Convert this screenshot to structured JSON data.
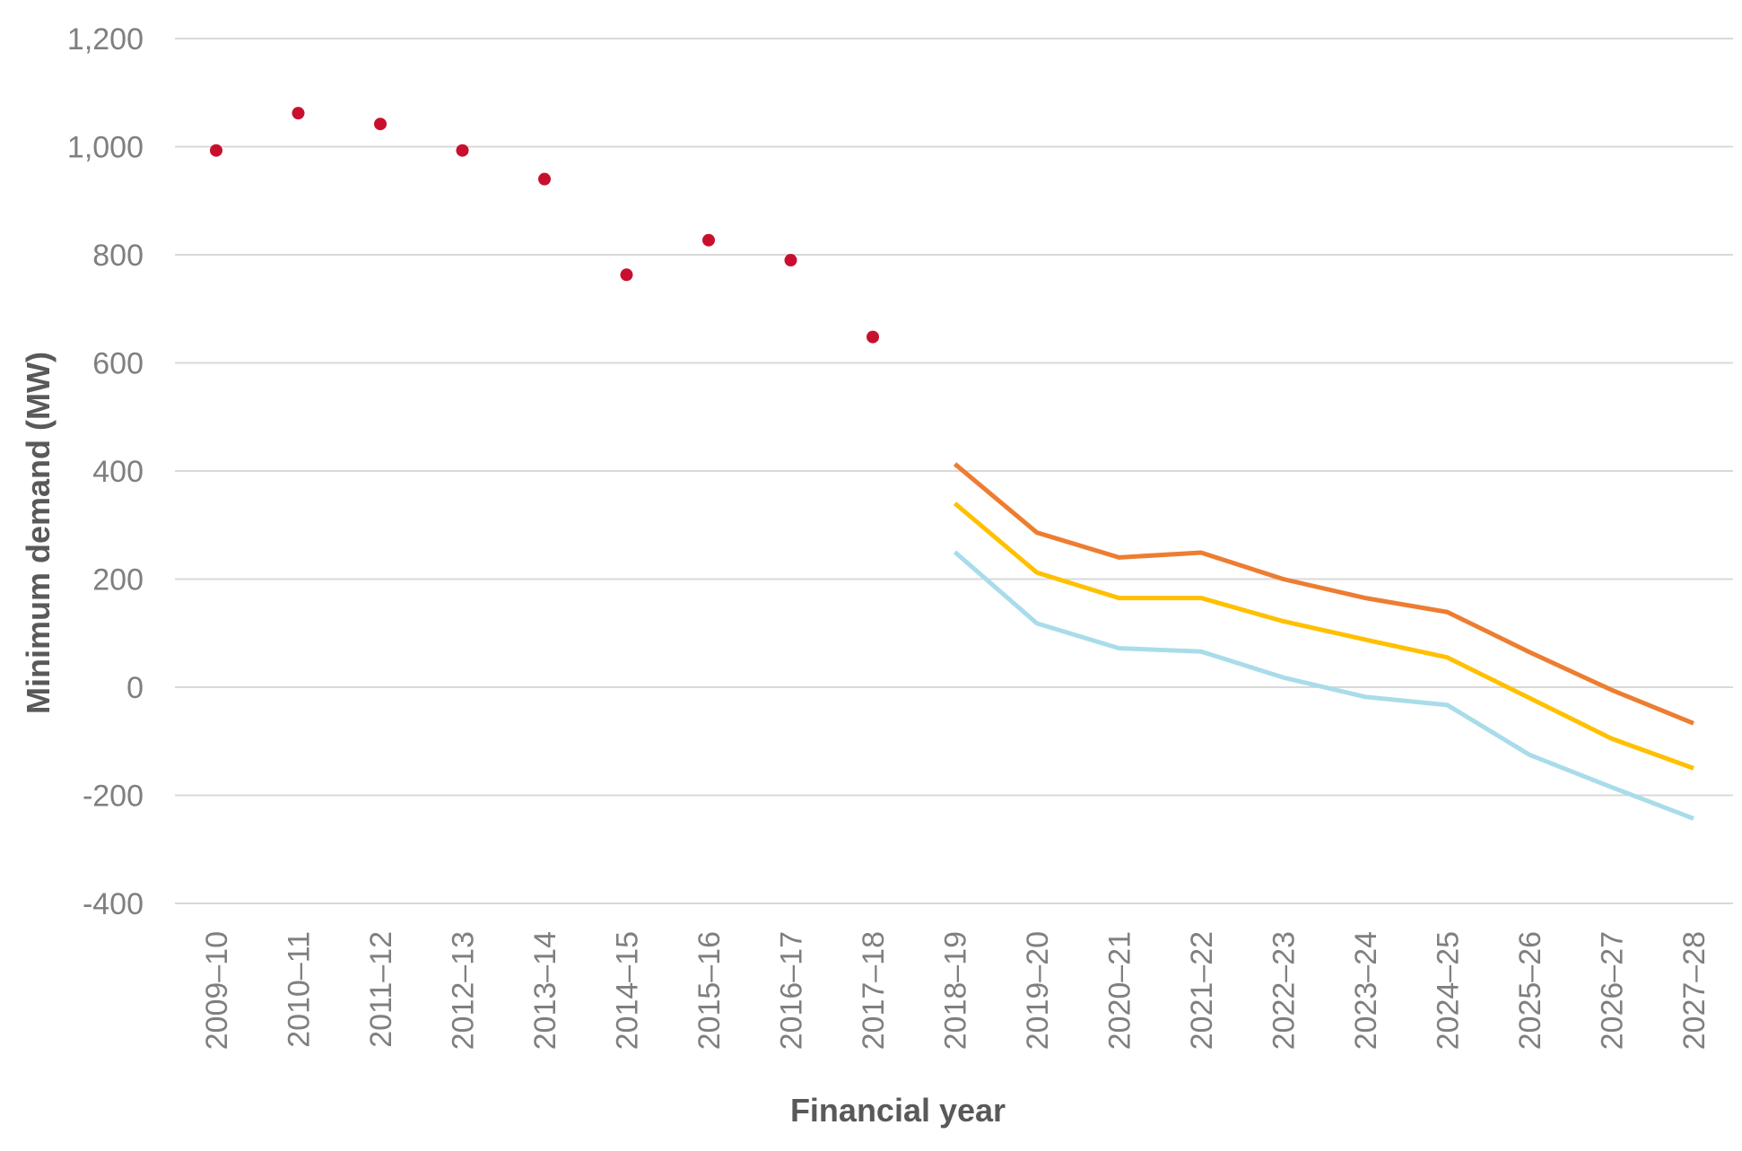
{
  "chart_data": {
    "type": "line",
    "title": "",
    "xlabel": "Financial year",
    "ylabel": "Minimum demand (MW)",
    "ylim": [
      -400,
      1200
    ],
    "yticks": [
      -400,
      -200,
      0,
      200,
      400,
      600,
      800,
      1000,
      1200
    ],
    "ytick_labels": [
      "-400",
      "-200",
      "0",
      "200",
      "400",
      "600",
      "800",
      "1,000",
      "1,200"
    ],
    "grid": true,
    "legend": "none",
    "categories": [
      "2009–10",
      "2010–11",
      "2011–12",
      "2012–13",
      "2013–14",
      "2014–15",
      "2015–16",
      "2016–17",
      "2017–18",
      "2018–19",
      "2019–20",
      "2020–21",
      "2021–22",
      "2022–23",
      "2023–24",
      "2024–25",
      "2025–26",
      "2026–27",
      "2027–28"
    ],
    "series": [
      {
        "kind": "scatter",
        "color": "#c8102e",
        "values": [
          993,
          1062,
          1042,
          993,
          940,
          763,
          827,
          790,
          648,
          null,
          null,
          null,
          null,
          null,
          null,
          null,
          null,
          null,
          null
        ]
      },
      {
        "kind": "line",
        "color": "#ed7d31",
        "values": [
          null,
          null,
          null,
          null,
          null,
          null,
          null,
          null,
          null,
          413,
          286,
          240,
          249,
          200,
          165,
          139,
          65,
          -5,
          -67
        ]
      },
      {
        "kind": "line",
        "color": "#ffc000",
        "values": [
          null,
          null,
          null,
          null,
          null,
          null,
          null,
          null,
          null,
          340,
          212,
          165,
          165,
          122,
          88,
          55,
          -20,
          -95,
          -150
        ]
      },
      {
        "kind": "line",
        "color": "#a9dcea",
        "values": [
          null,
          null,
          null,
          null,
          null,
          null,
          null,
          null,
          null,
          250,
          118,
          72,
          66,
          18,
          -18,
          -33,
          -125,
          -185,
          -243
        ]
      }
    ]
  }
}
